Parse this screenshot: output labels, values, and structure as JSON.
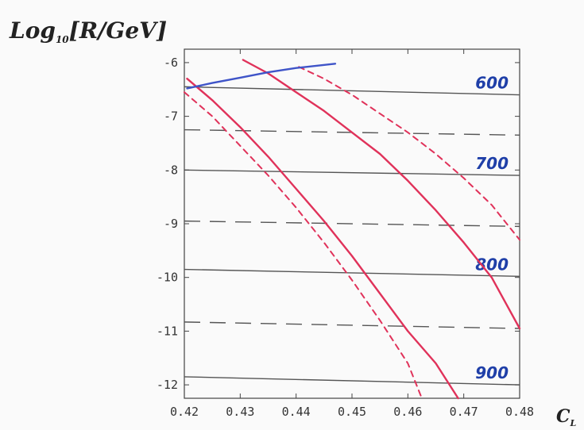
{
  "chart_data": {
    "type": "line",
    "ylabel_main": "Log",
    "ylabel_sub": "10",
    "ylabel_unit": "[R/GeV]",
    "xlabel_main": "C",
    "xlabel_sub": "L",
    "xlim": [
      0.42,
      0.48
    ],
    "ylim": [
      -12.25,
      -5.75
    ],
    "xticks": [
      0.42,
      0.43,
      0.44,
      0.45,
      0.46,
      0.47,
      0.48
    ],
    "xtick_labels": [
      "0.42",
      "0.43",
      "0.44",
      "0.45",
      "0.46",
      "0.47",
      "0.48"
    ],
    "yticks": [
      -6,
      -7,
      -8,
      -9,
      -10,
      -11,
      -12
    ],
    "ytick_labels": [
      "-6",
      "-7",
      "-8",
      "-9",
      "-10",
      "-11",
      "-12"
    ],
    "horizontal_lines": [
      {
        "style": "solid",
        "y0": -6.45,
        "y1": -6.6,
        "label": "600"
      },
      {
        "style": "dashed",
        "y0": -7.25,
        "y1": -7.35,
        "label": ""
      },
      {
        "style": "solid",
        "y0": -8.0,
        "y1": -8.1,
        "label": "700"
      },
      {
        "style": "dashed",
        "y0": -8.95,
        "y1": -9.05,
        "label": ""
      },
      {
        "style": "solid",
        "y0": -9.85,
        "y1": -9.98,
        "label": "800"
      },
      {
        "style": "dashed",
        "y0": -10.83,
        "y1": -10.95,
        "label": ""
      },
      {
        "style": "solid",
        "y0": -11.85,
        "y1": -12.0,
        "label": "900"
      }
    ],
    "series": [
      {
        "style": "solid",
        "color": "#e0325a",
        "x": [
          0.4205,
          0.425,
          0.43,
          0.435,
          0.44,
          0.445,
          0.45,
          0.455,
          0.46,
          0.465,
          0.469
        ],
        "y": [
          -6.3,
          -6.7,
          -7.2,
          -7.75,
          -8.35,
          -8.95,
          -9.6,
          -10.3,
          -11.0,
          -11.6,
          -12.25
        ]
      },
      {
        "style": "solid",
        "color": "#e0325a",
        "x": [
          0.4305,
          0.435,
          0.44,
          0.445,
          0.45,
          0.455,
          0.46,
          0.465,
          0.47,
          0.475,
          0.48
        ],
        "y": [
          -5.95,
          -6.2,
          -6.55,
          -6.9,
          -7.3,
          -7.7,
          -8.2,
          -8.75,
          -9.35,
          -10.0,
          -10.95
        ]
      },
      {
        "style": "dashed",
        "color": "#e0325a",
        "x": [
          0.42,
          0.425,
          0.43,
          0.435,
          0.44,
          0.445,
          0.45,
          0.455,
          0.46,
          0.4625
        ],
        "y": [
          -6.55,
          -7.0,
          -7.55,
          -8.1,
          -8.7,
          -9.35,
          -10.05,
          -10.8,
          -11.6,
          -12.25
        ]
      },
      {
        "style": "dashed",
        "color": "#e0325a",
        "x": [
          0.4405,
          0.445,
          0.45,
          0.455,
          0.46,
          0.465,
          0.47,
          0.475,
          0.48
        ],
        "y": [
          -6.08,
          -6.3,
          -6.6,
          -6.95,
          -7.3,
          -7.7,
          -8.15,
          -8.65,
          -9.3
        ]
      },
      {
        "style": "solid",
        "color": "#3f54c8",
        "x": [
          0.4205,
          0.425,
          0.43,
          0.435,
          0.44,
          0.447
        ],
        "y": [
          -6.48,
          -6.38,
          -6.28,
          -6.18,
          -6.1,
          -6.02
        ]
      }
    ]
  }
}
